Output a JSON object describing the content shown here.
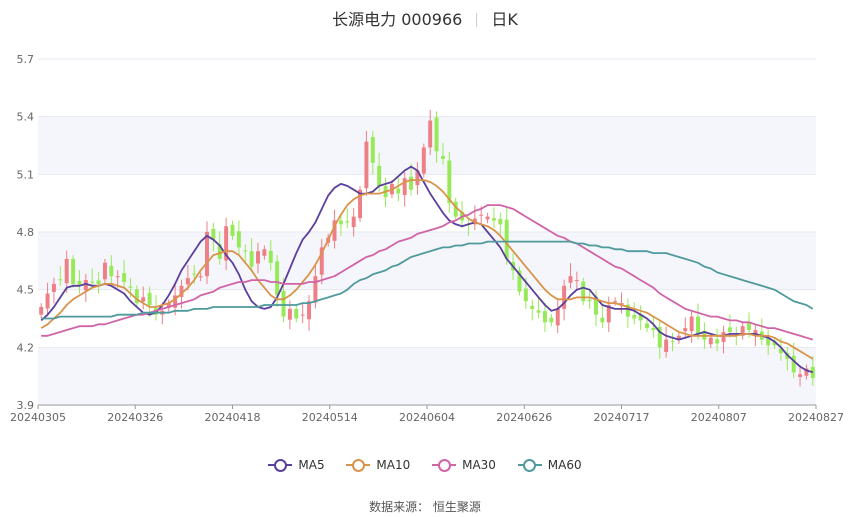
{
  "header": {
    "title": "长源电力 000966",
    "period": "日K"
  },
  "source_text": "数据来源： 恒生聚源",
  "colors": {
    "up": "#ee7f86",
    "down": "#96ea57",
    "grid_band": "#f5f6fb",
    "MA5": "#5b3f9c",
    "MA10": "#d9944b",
    "MA30": "#d064a7",
    "MA60": "#4f9a9c"
  },
  "chart_data": {
    "type": "candlestick",
    "ylim": [
      3.9,
      5.7
    ],
    "y_ticks": [
      "3.9",
      "4.2",
      "4.5",
      "4.8",
      "5.1",
      "5.4",
      "5.7"
    ],
    "x_ticks": [
      "20240305",
      "20240326",
      "20240418",
      "20240514",
      "20240604",
      "20240626",
      "20240717",
      "20240807",
      "20240827"
    ],
    "legend": [
      "MA5",
      "MA10",
      "MA30",
      "MA60"
    ],
    "grid": true,
    "candles_close": [
      4.41,
      4.48,
      4.53,
      4.55,
      4.66,
      4.53,
      4.52,
      4.55,
      4.54,
      4.53,
      4.64,
      4.57,
      4.57,
      4.54,
      4.51,
      4.43,
      4.46,
      4.42,
      4.37,
      4.39,
      4.43,
      4.47,
      4.52,
      4.56,
      4.58,
      4.57,
      4.8,
      4.76,
      4.66,
      4.83,
      4.78,
      4.72,
      4.7,
      4.62,
      4.7,
      4.71,
      4.64,
      4.47,
      4.36,
      4.4,
      4.35,
      4.37,
      4.44,
      4.57,
      4.72,
      4.77,
      4.86,
      4.84,
      4.85,
      4.88,
      5.02,
      5.27,
      5.16,
      5.04,
      4.98,
      5.05,
      5.0,
      5.08,
      5.02,
      5.12,
      5.24,
      5.38,
      5.22,
      5.18,
      4.95,
      4.88,
      4.86,
      4.84,
      4.87,
      4.89,
      4.88,
      4.86,
      4.84,
      4.66,
      4.6,
      4.49,
      4.44,
      4.4,
      4.38,
      4.33,
      4.33,
      4.4,
      4.52,
      4.57,
      4.55,
      4.44,
      4.44,
      4.37,
      4.33,
      4.42,
      4.44,
      4.43,
      4.36,
      4.35,
      4.34,
      4.3,
      4.29,
      4.2,
      4.24,
      4.23,
      4.26,
      4.3,
      4.36,
      4.27,
      4.24,
      4.25,
      4.22,
      4.28,
      4.28,
      4.26,
      4.31,
      4.29,
      4.29,
      4.24,
      4.21,
      4.21,
      4.17,
      4.14,
      4.07,
      4.06,
      4.09,
      4.04
    ],
    "series": [
      {
        "name": "MA5",
        "x": [
          0,
          1,
          2,
          3,
          4,
          5,
          6,
          7,
          8,
          9,
          10,
          11,
          12,
          13,
          14,
          15,
          16,
          17,
          18,
          19,
          20,
          21,
          22,
          23,
          24,
          25,
          26,
          27,
          28,
          29,
          30,
          31,
          32,
          33,
          34,
          35,
          36,
          37,
          38,
          39,
          40,
          41,
          42,
          43,
          44,
          45,
          46,
          47,
          48,
          49,
          50,
          51,
          52,
          53,
          54,
          55,
          56,
          57,
          58,
          59,
          60,
          61,
          62,
          63,
          64,
          65,
          66,
          67,
          68,
          69,
          70,
          71,
          72,
          73,
          74,
          75,
          76,
          77,
          78,
          79,
          80,
          81,
          82,
          83,
          84,
          85,
          86,
          87,
          88,
          89,
          90,
          91,
          92,
          93,
          94,
          95,
          96,
          97,
          98,
          99,
          100,
          101,
          102,
          103,
          104,
          105,
          106,
          107,
          108,
          109,
          110,
          111,
          112,
          113,
          114,
          115,
          116,
          117,
          118,
          119,
          120,
          121
        ],
        "y": [
          4.34,
          4.37,
          4.41,
          4.46,
          4.51,
          4.52,
          4.52,
          4.53,
          4.52,
          4.52,
          4.53,
          4.52,
          4.5,
          4.48,
          4.44,
          4.41,
          4.38,
          4.37,
          4.38,
          4.42,
          4.47,
          4.53,
          4.6,
          4.65,
          4.7,
          4.75,
          4.78,
          4.76,
          4.73,
          4.68,
          4.64,
          4.58,
          4.5,
          4.44,
          4.41,
          4.4,
          4.41,
          4.46,
          4.53,
          4.61,
          4.69,
          4.76,
          4.8,
          4.85,
          4.92,
          4.99,
          5.03,
          5.05,
          5.04,
          5.02,
          5.0,
          5.0,
          5.01,
          5.04,
          5.05,
          5.06,
          5.09,
          5.12,
          5.14,
          5.12,
          5.06,
          5.0,
          4.95,
          4.9,
          4.86,
          4.84,
          4.83,
          4.84,
          4.85,
          4.84,
          4.8,
          4.76,
          4.72,
          4.66,
          4.62,
          4.58,
          4.54,
          4.5,
          4.46,
          4.42,
          4.39,
          4.4,
          4.43,
          4.47,
          4.5,
          4.51,
          4.5,
          4.46,
          4.42,
          4.41,
          4.4,
          4.4,
          4.4,
          4.39,
          4.37,
          4.35,
          4.32,
          4.28,
          4.26,
          4.25,
          4.24,
          4.25,
          4.26,
          4.27,
          4.28,
          4.27,
          4.26,
          4.26,
          4.27,
          4.27,
          4.27,
          4.27,
          4.27,
          4.26,
          4.25,
          4.23,
          4.2,
          4.16,
          4.13,
          4.1,
          4.08,
          4.07
        ]
      },
      {
        "name": "MA10",
        "x": [
          0,
          1,
          2,
          3,
          4,
          5,
          6,
          7,
          8,
          9,
          10,
          11,
          12,
          13,
          14,
          15,
          16,
          17,
          18,
          19,
          20,
          21,
          22,
          23,
          24,
          25,
          26,
          27,
          28,
          29,
          30,
          31,
          32,
          33,
          34,
          35,
          36,
          37,
          38,
          39,
          40,
          41,
          42,
          43,
          44,
          45,
          46,
          47,
          48,
          49,
          50,
          51,
          52,
          53,
          54,
          55,
          56,
          57,
          58,
          59,
          60,
          61,
          62,
          63,
          64,
          65,
          66,
          67,
          68,
          69,
          70,
          71,
          72,
          73,
          74,
          75,
          76,
          77,
          78,
          79,
          80,
          81,
          82,
          83,
          84,
          85,
          86,
          87,
          88,
          89,
          90,
          91,
          92,
          93,
          94,
          95,
          96,
          97,
          98,
          99,
          100,
          101,
          102,
          103,
          104,
          105,
          106,
          107,
          108,
          109,
          110,
          111,
          112,
          113,
          114,
          115,
          116,
          117,
          118,
          119,
          120,
          121
        ],
        "y": [
          4.3,
          4.32,
          4.35,
          4.38,
          4.42,
          4.45,
          4.47,
          4.49,
          4.51,
          4.52,
          4.53,
          4.53,
          4.52,
          4.51,
          4.48,
          4.45,
          4.43,
          4.41,
          4.41,
          4.42,
          4.43,
          4.45,
          4.48,
          4.51,
          4.55,
          4.6,
          4.64,
          4.68,
          4.69,
          4.7,
          4.7,
          4.68,
          4.64,
          4.6,
          4.55,
          4.51,
          4.47,
          4.45,
          4.45,
          4.47,
          4.5,
          4.54,
          4.58,
          4.63,
          4.69,
          4.76,
          4.83,
          4.89,
          4.94,
          4.97,
          4.99,
          5.0,
          5.0,
          5.0,
          5.01,
          5.02,
          5.04,
          5.06,
          5.07,
          5.07,
          5.07,
          5.06,
          5.04,
          5.01,
          4.97,
          4.93,
          4.9,
          4.87,
          4.85,
          4.84,
          4.83,
          4.81,
          4.78,
          4.74,
          4.7,
          4.66,
          4.62,
          4.58,
          4.54,
          4.5,
          4.47,
          4.45,
          4.45,
          4.45,
          4.46,
          4.46,
          4.46,
          4.45,
          4.44,
          4.43,
          4.43,
          4.42,
          4.41,
          4.4,
          4.39,
          4.38,
          4.36,
          4.34,
          4.32,
          4.3,
          4.28,
          4.27,
          4.26,
          4.26,
          4.26,
          4.26,
          4.26,
          4.26,
          4.26,
          4.26,
          4.27,
          4.27,
          4.26,
          4.26,
          4.26,
          4.25,
          4.23,
          4.22,
          4.2,
          4.18,
          4.16,
          4.14
        ]
      },
      {
        "name": "MA30",
        "x": [
          0,
          1,
          2,
          3,
          4,
          5,
          6,
          7,
          8,
          9,
          10,
          11,
          12,
          13,
          14,
          15,
          16,
          17,
          18,
          19,
          20,
          21,
          22,
          23,
          24,
          25,
          26,
          27,
          28,
          29,
          30,
          31,
          32,
          33,
          34,
          35,
          36,
          37,
          38,
          39,
          40,
          41,
          42,
          43,
          44,
          45,
          46,
          47,
          48,
          49,
          50,
          51,
          52,
          53,
          54,
          55,
          56,
          57,
          58,
          59,
          60,
          61,
          62,
          63,
          64,
          65,
          66,
          67,
          68,
          69,
          70,
          71,
          72,
          73,
          74,
          75,
          76,
          77,
          78,
          79,
          80,
          81,
          82,
          83,
          84,
          85,
          86,
          87,
          88,
          89,
          90,
          91,
          92,
          93,
          94,
          95,
          96,
          97,
          98,
          99,
          100,
          101,
          102,
          103,
          104,
          105,
          106,
          107,
          108,
          109,
          110,
          111,
          112,
          113,
          114,
          115,
          116,
          117,
          118,
          119,
          120,
          121
        ],
        "y": [
          4.26,
          4.26,
          4.27,
          4.28,
          4.29,
          4.3,
          4.31,
          4.31,
          4.31,
          4.32,
          4.32,
          4.33,
          4.34,
          4.35,
          4.36,
          4.37,
          4.37,
          4.38,
          4.39,
          4.4,
          4.41,
          4.42,
          4.43,
          4.44,
          4.45,
          4.47,
          4.48,
          4.49,
          4.51,
          4.52,
          4.53,
          4.54,
          4.54,
          4.55,
          4.55,
          4.55,
          4.54,
          4.54,
          4.53,
          4.53,
          4.53,
          4.53,
          4.54,
          4.54,
          4.55,
          4.56,
          4.57,
          4.59,
          4.61,
          4.63,
          4.65,
          4.67,
          4.68,
          4.7,
          4.71,
          4.73,
          4.75,
          4.76,
          4.77,
          4.79,
          4.8,
          4.81,
          4.82,
          4.83,
          4.85,
          4.86,
          4.88,
          4.89,
          4.91,
          4.92,
          4.94,
          4.94,
          4.94,
          4.93,
          4.92,
          4.9,
          4.88,
          4.86,
          4.84,
          4.82,
          4.8,
          4.78,
          4.77,
          4.75,
          4.74,
          4.72,
          4.7,
          4.68,
          4.66,
          4.64,
          4.62,
          4.61,
          4.59,
          4.57,
          4.55,
          4.53,
          4.51,
          4.48,
          4.46,
          4.44,
          4.42,
          4.4,
          4.39,
          4.38,
          4.37,
          4.36,
          4.36,
          4.35,
          4.34,
          4.34,
          4.33,
          4.33,
          4.32,
          4.31,
          4.3,
          4.3,
          4.29,
          4.28,
          4.27,
          4.26,
          4.25,
          4.24
        ]
      },
      {
        "name": "MA60",
        "x": [
          0,
          1,
          2,
          3,
          4,
          5,
          6,
          7,
          8,
          9,
          10,
          11,
          12,
          13,
          14,
          15,
          16,
          17,
          18,
          19,
          20,
          21,
          22,
          23,
          24,
          25,
          26,
          27,
          28,
          29,
          30,
          31,
          32,
          33,
          34,
          35,
          36,
          37,
          38,
          39,
          40,
          41,
          42,
          43,
          44,
          45,
          46,
          47,
          48,
          49,
          50,
          51,
          52,
          53,
          54,
          55,
          56,
          57,
          58,
          59,
          60,
          61,
          62,
          63,
          64,
          65,
          66,
          67,
          68,
          69,
          70,
          71,
          72,
          73,
          74,
          75,
          76,
          77,
          78,
          79,
          80,
          81,
          82,
          83,
          84,
          85,
          86,
          87,
          88,
          89,
          90,
          91,
          92,
          93,
          94,
          95,
          96,
          97,
          98,
          99,
          100,
          101,
          102,
          103,
          104,
          105,
          106,
          107,
          108,
          109,
          110,
          111,
          112,
          113,
          114,
          115,
          116,
          117,
          118,
          119,
          120,
          121
        ],
        "y": [
          4.35,
          4.35,
          4.35,
          4.36,
          4.36,
          4.36,
          4.36,
          4.36,
          4.36,
          4.36,
          4.36,
          4.36,
          4.37,
          4.37,
          4.37,
          4.37,
          4.38,
          4.38,
          4.38,
          4.38,
          4.38,
          4.39,
          4.39,
          4.39,
          4.4,
          4.4,
          4.4,
          4.41,
          4.41,
          4.41,
          4.41,
          4.41,
          4.41,
          4.41,
          4.41,
          4.42,
          4.42,
          4.42,
          4.42,
          4.42,
          4.42,
          4.43,
          4.43,
          4.44,
          4.45,
          4.46,
          4.47,
          4.48,
          4.5,
          4.53,
          4.55,
          4.56,
          4.58,
          4.59,
          4.6,
          4.62,
          4.63,
          4.65,
          4.67,
          4.68,
          4.69,
          4.7,
          4.71,
          4.72,
          4.72,
          4.73,
          4.73,
          4.74,
          4.74,
          4.74,
          4.75,
          4.75,
          4.75,
          4.75,
          4.75,
          4.75,
          4.75,
          4.75,
          4.75,
          4.75,
          4.75,
          4.75,
          4.75,
          4.75,
          4.74,
          4.74,
          4.73,
          4.73,
          4.72,
          4.72,
          4.71,
          4.71,
          4.7,
          4.7,
          4.7,
          4.7,
          4.69,
          4.69,
          4.69,
          4.68,
          4.67,
          4.66,
          4.65,
          4.64,
          4.62,
          4.61,
          4.59,
          4.58,
          4.57,
          4.56,
          4.55,
          4.54,
          4.53,
          4.52,
          4.51,
          4.5,
          4.48,
          4.46,
          4.44,
          4.43,
          4.42,
          4.4
        ]
      }
    ]
  }
}
